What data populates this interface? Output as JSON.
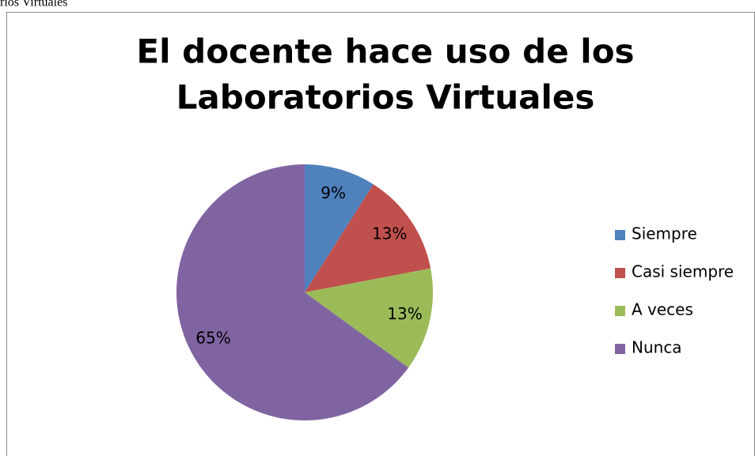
{
  "caption": "rios Virtuales",
  "chart_data": {
    "type": "pie",
    "title": [
      "El docente hace uso de los",
      "Laboratorios Virtuales"
    ],
    "categories": [
      "Siempre",
      "Casi siempre",
      "A veces",
      "Nunca"
    ],
    "values": [
      9,
      13,
      13,
      65
    ],
    "value_labels": [
      "9%",
      "13%",
      "13%",
      "65%"
    ],
    "colors": [
      "#4f81bd",
      "#c0504d",
      "#9bbb59",
      "#8064a2"
    ],
    "legend": "right"
  }
}
